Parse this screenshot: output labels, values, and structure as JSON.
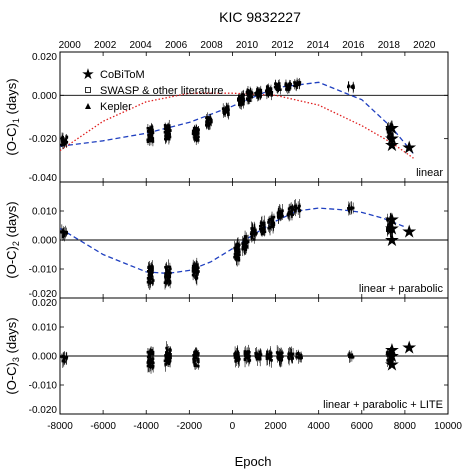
{
  "chart_data": {
    "type": "scatter",
    "title": "KIC 9832227",
    "xlabel": "Epoch",
    "xlim": [
      -8000,
      10000
    ],
    "x_ticks": [
      "-8000",
      "-6000",
      "-4000",
      "-2000",
      "0",
      "2000",
      "4000",
      "6000",
      "8000",
      "10000"
    ],
    "top_axis": {
      "years": [
        "2000",
        "2002",
        "2004",
        "2006",
        "2008",
        "2010",
        "2012",
        "2014",
        "2016",
        "2018",
        "2020"
      ]
    },
    "legend": {
      "placement": "top-left",
      "entries": [
        {
          "label": "CoBiToM",
          "marker": "star"
        },
        {
          "label": "SWASP & other literature",
          "marker": "open-square"
        },
        {
          "label": "Kepler",
          "marker": "triangle"
        }
      ]
    },
    "panels": [
      {
        "ylabel": "(O-C)1 (days)",
        "ylabel_main": "(O-C)",
        "ylabel_sub": "1",
        "ylabel_unit": "(days)",
        "label": "linear",
        "ylim": [
          -0.04,
          0.02
        ],
        "y_ticks": [
          "0.020",
          "0.000",
          "-0.020",
          "-0.040"
        ],
        "zero_line": true,
        "clusters": [
          {
            "x": -7800,
            "center": -0.021,
            "spread": 0.004
          },
          {
            "x": -3800,
            "center": -0.018,
            "spread": 0.007
          },
          {
            "x": -3000,
            "center": -0.017,
            "spread": 0.007
          },
          {
            "x": -1700,
            "center": -0.018,
            "spread": 0.006
          },
          {
            "x": -1100,
            "center": -0.012,
            "spread": 0.004
          },
          {
            "x": -300,
            "center": -0.007,
            "spread": 0.004
          },
          {
            "x": 400,
            "center": -0.002,
            "spread": 0.005
          },
          {
            "x": 800,
            "center": 0.0,
            "spread": 0.005
          },
          {
            "x": 1200,
            "center": 0.001,
            "spread": 0.004
          },
          {
            "x": 1700,
            "center": 0.002,
            "spread": 0.004
          },
          {
            "x": 2100,
            "center": 0.004,
            "spread": 0.003
          },
          {
            "x": 2600,
            "center": 0.004,
            "spread": 0.003
          },
          {
            "x": 3000,
            "center": 0.005,
            "spread": 0.002
          },
          {
            "x": 5500,
            "center": 0.004,
            "spread": 0.001
          },
          {
            "x": 7300,
            "center": -0.017,
            "spread": 0.006
          }
        ],
        "stars": [
          {
            "x": 7400,
            "y": -0.015
          },
          {
            "x": 7400,
            "y": -0.02
          },
          {
            "x": 7400,
            "y": -0.023
          },
          {
            "x": 8200,
            "y": -0.024
          }
        ],
        "curves": [
          {
            "style": "blue-dashed",
            "kind": "quadratic-fit",
            "x": [
              -8000,
              -6000,
              -4000,
              -2000,
              0,
              2000,
              4000,
              6000,
              7400,
              8400
            ],
            "y": [
              -0.0235,
              -0.021,
              -0.0175,
              -0.0125,
              -0.005,
              0.0035,
              0.006,
              -0.002,
              -0.015,
              -0.027
            ]
          },
          {
            "style": "red-dotted",
            "kind": "model",
            "x": [
              -8000,
              -6000,
              -4000,
              -2000,
              0,
              2000,
              4000,
              6000,
              7400,
              8400
            ],
            "y": [
              -0.0255,
              -0.012,
              -0.003,
              0.001,
              0.001,
              0.0,
              -0.0045,
              -0.014,
              -0.022,
              -0.029
            ]
          }
        ]
      },
      {
        "ylabel": "(O-C)2 (days)",
        "ylabel_main": "(O-C)",
        "ylabel_sub": "2",
        "ylabel_unit": "(days)",
        "label": "linear + parabolic",
        "ylim": [
          -0.02,
          0.02
        ],
        "y_ticks": [
          "0.010",
          "0.000",
          "-0.010",
          "-0.020"
        ],
        "zero_line": true,
        "clusters": [
          {
            "x": -7800,
            "center": 0.002,
            "spread": 0.002
          },
          {
            "x": -3800,
            "center": -0.012,
            "spread": 0.006
          },
          {
            "x": -3000,
            "center": -0.012,
            "spread": 0.006
          },
          {
            "x": -1700,
            "center": -0.011,
            "spread": 0.005
          },
          {
            "x": 200,
            "center": -0.004,
            "spread": 0.006
          },
          {
            "x": 600,
            "center": -0.001,
            "spread": 0.005
          },
          {
            "x": 1000,
            "center": 0.002,
            "spread": 0.004
          },
          {
            "x": 1400,
            "center": 0.004,
            "spread": 0.004
          },
          {
            "x": 1800,
            "center": 0.006,
            "spread": 0.004
          },
          {
            "x": 2200,
            "center": 0.009,
            "spread": 0.003
          },
          {
            "x": 2700,
            "center": 0.01,
            "spread": 0.003
          },
          {
            "x": 3000,
            "center": 0.011,
            "spread": 0.002
          },
          {
            "x": 5500,
            "center": 0.011,
            "spread": 0.001
          },
          {
            "x": 7300,
            "center": 0.005,
            "spread": 0.005
          }
        ],
        "stars": [
          {
            "x": 7400,
            "y": 0.007
          },
          {
            "x": 7400,
            "y": 0.004
          },
          {
            "x": 7400,
            "y": 0.0
          },
          {
            "x": 8200,
            "y": 0.003
          }
        ],
        "curves": [
          {
            "style": "blue-dashed",
            "kind": "fit",
            "x": [
              -8000,
              -6000,
              -4000,
              -3000,
              -2000,
              -1000,
              0,
              1000,
              2000,
              3000,
              4000,
              5000,
              6000,
              7000,
              8000
            ],
            "y": [
              0.004,
              -0.005,
              -0.011,
              -0.0115,
              -0.0105,
              -0.0075,
              -0.003,
              0.002,
              0.0065,
              0.01,
              0.011,
              0.0105,
              0.0095,
              0.0075,
              0.0045
            ]
          }
        ]
      },
      {
        "ylabel": "(O-C)3 (days)",
        "ylabel_main": "(O-C)",
        "ylabel_sub": "3",
        "ylabel_unit": "(days)",
        "label": "linear + parabolic + LITE",
        "ylim": [
          -0.02,
          0.02
        ],
        "y_ticks": [
          "0.020",
          "0.010",
          "0.000",
          "-0.010",
          "-0.020"
        ],
        "zero_line": true,
        "clusters": [
          {
            "x": -7800,
            "center": -0.001,
            "spread": 0.002
          },
          {
            "x": -3800,
            "center": -0.001,
            "spread": 0.006
          },
          {
            "x": -3000,
            "center": 0.0,
            "spread": 0.006
          },
          {
            "x": -1700,
            "center": -0.001,
            "spread": 0.005
          },
          {
            "x": 200,
            "center": 0.0,
            "spread": 0.004
          },
          {
            "x": 700,
            "center": 0.0,
            "spread": 0.004
          },
          {
            "x": 1200,
            "center": 0.0,
            "spread": 0.003
          },
          {
            "x": 1700,
            "center": 0.0,
            "spread": 0.003
          },
          {
            "x": 2200,
            "center": 0.0,
            "spread": 0.003
          },
          {
            "x": 2700,
            "center": 0.0,
            "spread": 0.002
          },
          {
            "x": 3100,
            "center": 0.0,
            "spread": 0.002
          },
          {
            "x": 5500,
            "center": 0.0,
            "spread": 0.001
          },
          {
            "x": 7300,
            "center": 0.0,
            "spread": 0.004
          }
        ],
        "stars": [
          {
            "x": 7400,
            "y": 0.002
          },
          {
            "x": 7400,
            "y": 0.0
          },
          {
            "x": 7400,
            "y": -0.003
          },
          {
            "x": 8200,
            "y": 0.003
          }
        ],
        "curves": []
      }
    ]
  }
}
